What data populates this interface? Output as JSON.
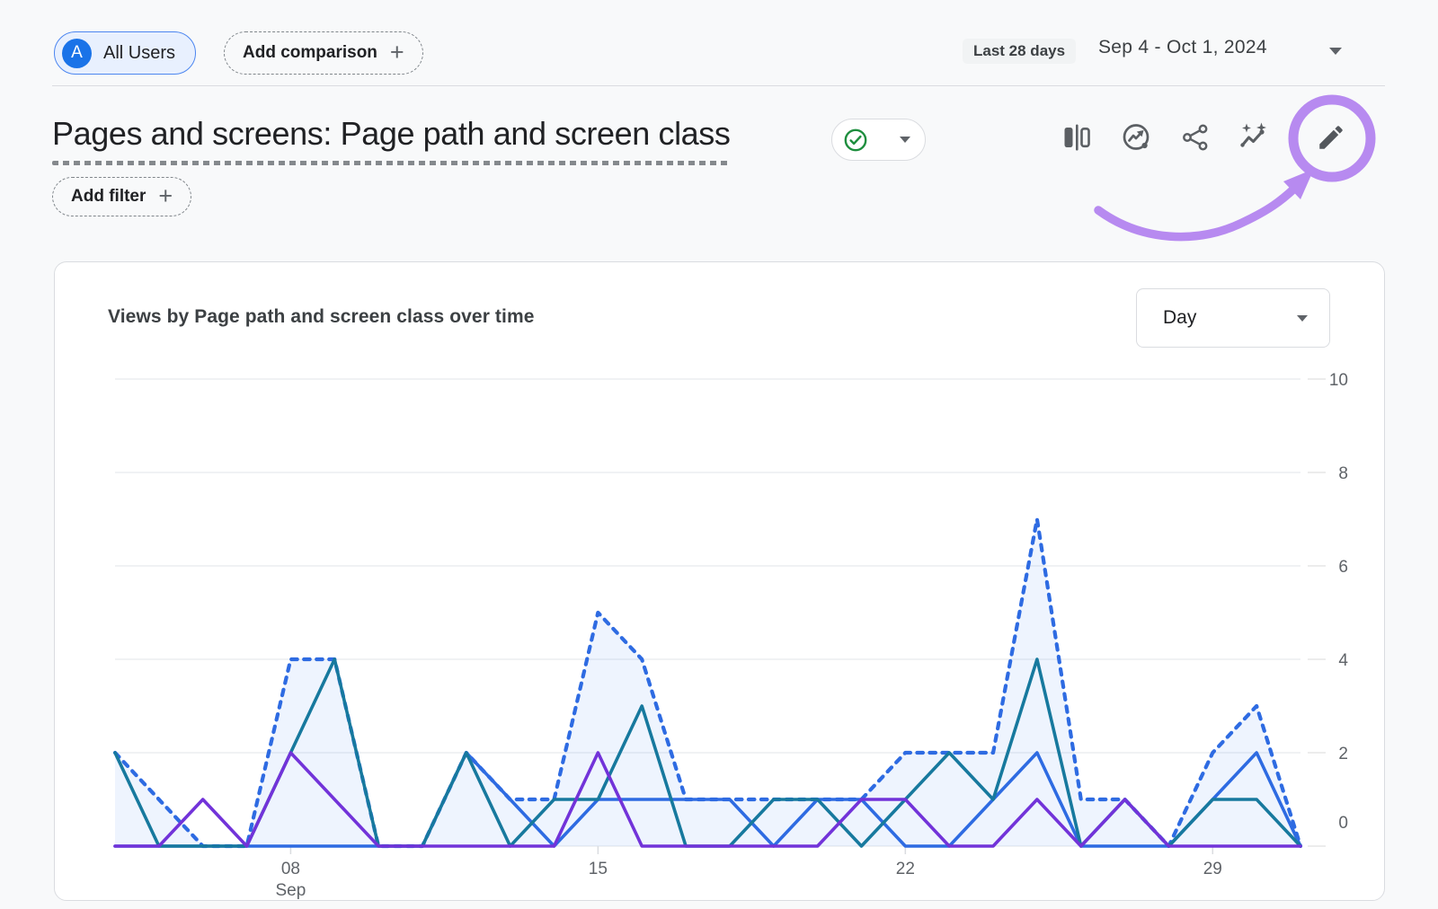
{
  "topbar": {
    "audience_chip": {
      "avatar_letter": "A",
      "label": "All Users"
    },
    "add_comparison_label": "Add comparison",
    "date_range": {
      "preset_label": "Last 28 days",
      "range_label": "Sep 4 - Oct 1, 2024"
    }
  },
  "report_header": {
    "title": "Pages and screens: Page path and screen class",
    "add_filter_label": "Add filter",
    "toolbar_icon_names": [
      "ab-comparison-icon",
      "insights-circle-icon",
      "share-icon",
      "insights-sparkle-icon",
      "edit-pencil-icon"
    ]
  },
  "annotation": {
    "color": "#b78af0",
    "shape": "circle-around-edit-pencil-with-curved-arrow"
  },
  "card": {
    "chart_title": "Views by Page path and screen class over time",
    "granularity_selector": {
      "value": "Day"
    }
  },
  "chart_data": {
    "type": "line",
    "title": "Views by Page path and screen class over time",
    "x": [
      "Sep 4",
      "Sep 5",
      "Sep 6",
      "Sep 7",
      "Sep 8",
      "Sep 9",
      "Sep 10",
      "Sep 11",
      "Sep 12",
      "Sep 13",
      "Sep 14",
      "Sep 15",
      "Sep 16",
      "Sep 17",
      "Sep 18",
      "Sep 19",
      "Sep 20",
      "Sep 21",
      "Sep 22",
      "Sep 23",
      "Sep 24",
      "Sep 25",
      "Sep 26",
      "Sep 27",
      "Sep 28",
      "Sep 29",
      "Sep 30",
      "Oct 1"
    ],
    "x_ticks": [
      {
        "index": 4,
        "label": "08",
        "sublabel": "Sep"
      },
      {
        "index": 11,
        "label": "15"
      },
      {
        "index": 18,
        "label": "22"
      },
      {
        "index": 25,
        "label": "29"
      }
    ],
    "y_ticks": [
      0,
      2,
      4,
      6,
      8,
      10
    ],
    "ylim": [
      0,
      10
    ],
    "grid": true,
    "legend": "none",
    "area_fill_color": "rgba(66,133,244,0.09)",
    "axis_label_color": "#5f6368",
    "series": [
      {
        "id": "views-line-dotted-blue",
        "color": "#2e6be2",
        "line_style": "dotted",
        "area_fill": true,
        "values": [
          2,
          1,
          0,
          0,
          4,
          4,
          0,
          0,
          2,
          1,
          1,
          5,
          4,
          1,
          1,
          1,
          1,
          1,
          2,
          2,
          2,
          7,
          1,
          1,
          0,
          2,
          3,
          0
        ]
      },
      {
        "id": "views-line-blue",
        "color": "#2e6be2",
        "line_style": "solid",
        "area_fill": false,
        "values": [
          0,
          0,
          0,
          0,
          0,
          0,
          0,
          0,
          2,
          1,
          0,
          1,
          1,
          1,
          1,
          0,
          1,
          1,
          0,
          0,
          1,
          2,
          0,
          0,
          0,
          1,
          2,
          0
        ]
      },
      {
        "id": "views-line-teal",
        "color": "#17799e",
        "line_style": "solid",
        "area_fill": false,
        "values": [
          2,
          0,
          0,
          0,
          2,
          4,
          0,
          0,
          2,
          0,
          1,
          1,
          3,
          0,
          0,
          1,
          1,
          0,
          1,
          2,
          1,
          4,
          0,
          1,
          0,
          1,
          1,
          0
        ]
      },
      {
        "id": "views-line-purple",
        "color": "#7233d9",
        "line_style": "solid",
        "area_fill": false,
        "values": [
          0,
          0,
          1,
          0,
          2,
          1,
          0,
          0,
          0,
          0,
          0,
          2,
          0,
          0,
          0,
          0,
          0,
          1,
          1,
          0,
          0,
          1,
          0,
          1,
          0,
          0,
          0,
          0
        ]
      }
    ]
  }
}
